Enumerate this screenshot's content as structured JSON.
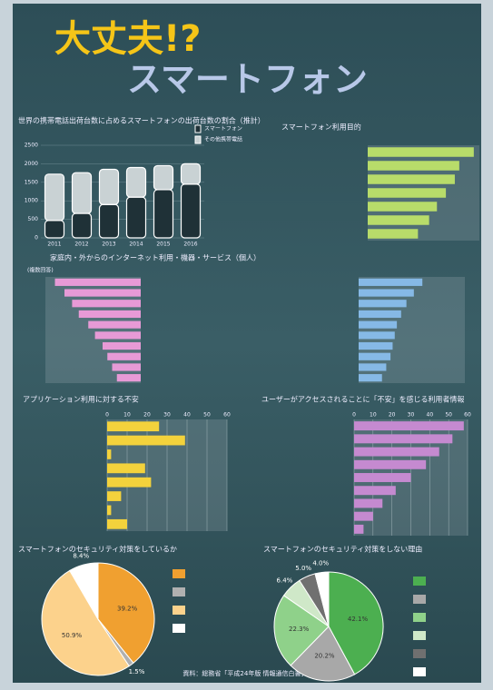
{
  "title": "大丈夫!?",
  "subtitle": "スマートフォン",
  "chart_data": [
    {
      "type": "stacked",
      "title": "世界の携帯電話出荷台数に占めるスマートフォンの出荷台数の割合（推計）",
      "categories": [
        "2011",
        "2012",
        "2013",
        "2014",
        "2015",
        "2016"
      ],
      "ylim": [
        0,
        2500
      ],
      "yticks": [
        0,
        500,
        1000,
        1500,
        2000,
        2500
      ],
      "series": [
        {
          "name": "スマートフォン",
          "color": "#1f3137",
          "values": [
            470,
            660,
            900,
            1100,
            1300,
            1450
          ]
        },
        {
          "name": "その他携帯電話",
          "color": "#c9d2d4",
          "values": [
            1250,
            1100,
            950,
            800,
            650,
            550
          ]
        }
      ]
    },
    {
      "type": "hbar",
      "title": "スマートフォン利用目的",
      "categories": [
        null,
        null,
        null,
        null,
        null,
        null,
        null
      ],
      "values": [
        95,
        82,
        78,
        70,
        62,
        55,
        45
      ],
      "xlim": [
        0,
        100
      ],
      "color": "#b8dc6a"
    },
    {
      "type": "hbar-left",
      "title": "家庭内・外からのインターネット利用・機器・サービス（個人）",
      "subtitle": "(複数回答)",
      "categories": [
        null,
        null,
        null,
        null,
        null,
        null,
        null,
        null,
        null,
        null
      ],
      "values": [
        90,
        80,
        72,
        65,
        55,
        48,
        40,
        35,
        30,
        25
      ],
      "xlim": [
        0,
        100
      ],
      "color": "#e79ad6"
    },
    {
      "type": "hbar",
      "categories": [
        null,
        null,
        null,
        null,
        null,
        null,
        null,
        null,
        null,
        null
      ],
      "values": [
        60,
        52,
        45,
        40,
        36,
        34,
        32,
        30,
        26,
        22
      ],
      "xlim": [
        0,
        100
      ],
      "color": "#86b9e6"
    },
    {
      "type": "hbar",
      "title": "アプリケーション利用に対する不安",
      "categories": [
        null,
        null,
        null,
        null,
        null,
        null,
        null,
        null
      ],
      "values": [
        26,
        39,
        2,
        19,
        22,
        7,
        2,
        10
      ],
      "xlim": [
        0,
        60
      ],
      "xticks": [
        0,
        10,
        20,
        30,
        40,
        50,
        60
      ],
      "color": "#f3d23c"
    },
    {
      "type": "hbar",
      "title": "ユーザーがアクセスされることに「不安」を感じる利用者情報",
      "categories": [
        null,
        null,
        null,
        null,
        null,
        null,
        null,
        null,
        null
      ],
      "values": [
        58,
        52,
        45,
        38,
        30,
        22,
        15,
        10,
        5
      ],
      "xlim": [
        0,
        60
      ],
      "xticks": [
        0,
        10,
        20,
        30,
        40,
        50,
        60
      ],
      "color": "#c58ad0"
    },
    {
      "type": "pie",
      "title": "スマートフォンのセキュリティ対策をしているか",
      "categories": [
        null,
        null,
        null,
        null
      ],
      "values": [
        39.2,
        1.5,
        50.9,
        8.4
      ],
      "value_labels": [
        "39.2%",
        "1.5%",
        "50.9%",
        "8.4%"
      ],
      "colors": [
        "#f0a030",
        "#b0b0b0",
        "#fcd28c",
        "#ffffff"
      ]
    },
    {
      "type": "pie",
      "title": "スマートフォンのセキュリティ対策をしない理由",
      "categories": [
        null,
        null,
        null,
        null,
        null,
        null
      ],
      "values": [
        42.1,
        20.2,
        22.3,
        6.4,
        5.0,
        4.0
      ],
      "value_labels": [
        "42.1%",
        "20.2%",
        "22.3%",
        "6.4%",
        "5.0%",
        "4.0%"
      ],
      "colors": [
        "#4caf50",
        "#a8a8a8",
        "#8fd18a",
        "#cfe8c8",
        "#707070",
        "#ffffff"
      ]
    }
  ],
  "footer": "資料：総務省「平成24年版 情報通信白書」"
}
